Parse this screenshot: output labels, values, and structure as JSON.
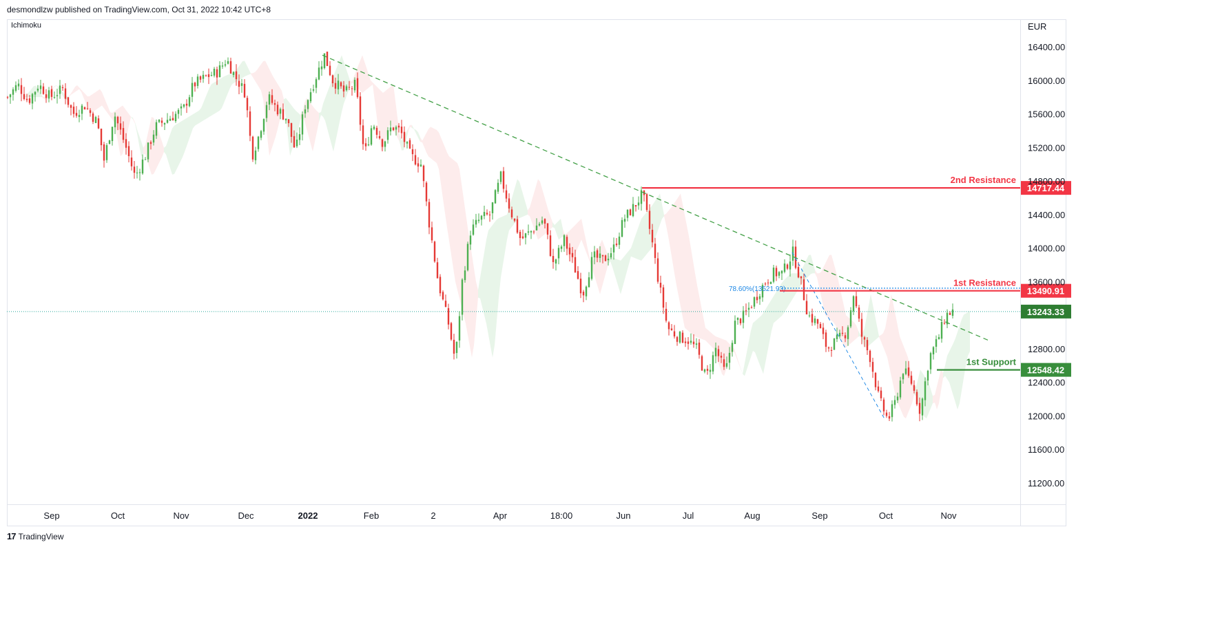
{
  "header": {
    "text": "desmondlzw published on TradingView.com, Oct 31, 2022 10:42 UTC+8"
  },
  "indicator": {
    "name": "Ichimoku"
  },
  "price_axis": {
    "currency": "EUR"
  },
  "footer": {
    "brand": "TradingView",
    "logo_mark": "17"
  },
  "colors": {
    "up": "#26a69a",
    "down": "#ef5350",
    "candle_up": "#4caf50",
    "candle_down": "#e53935",
    "trend": "#43a047",
    "resistance": "#f23645",
    "support": "#388e3c",
    "fib": "#1e88e5",
    "cloud_green": "#e8f5e9",
    "cloud_red": "#fdecec",
    "current": "#26a69a"
  },
  "chart_data": {
    "type": "candlestick",
    "symbol_currency": "EUR",
    "ylim": [
      10900,
      16700
    ],
    "y_ticks": [
      16400,
      16000,
      15600,
      15200,
      14800,
      14400,
      14000,
      13600,
      12800,
      12400,
      12000,
      11600,
      11200
    ],
    "x_labels": [
      "Sep",
      "Oct",
      "Nov",
      "Dec",
      "2022",
      "Feb",
      "2",
      "Apr",
      "18:00",
      "Jun",
      "Jul",
      "Aug",
      "Sep",
      "Oct",
      "Nov"
    ],
    "price_series": {
      "name": "",
      "points": [
        [
          0,
          15800
        ],
        [
          15,
          15950
        ],
        [
          30,
          15750
        ],
        [
          45,
          15950
        ],
        [
          62,
          15800
        ],
        [
          80,
          15900
        ],
        [
          95,
          15600
        ],
        [
          112,
          15700
        ],
        [
          130,
          15500
        ],
        [
          140,
          15050
        ],
        [
          155,
          15600
        ],
        [
          170,
          15250
        ],
        [
          185,
          14850
        ],
        [
          200,
          15100
        ],
        [
          215,
          15450
        ],
        [
          235,
          15550
        ],
        [
          255,
          15650
        ],
        [
          270,
          15950
        ],
        [
          290,
          16050
        ],
        [
          305,
          16100
        ],
        [
          318,
          16250
        ],
        [
          330,
          16050
        ],
        [
          345,
          15850
        ],
        [
          355,
          15100
        ],
        [
          365,
          15350
        ],
        [
          378,
          15800
        ],
        [
          392,
          15650
        ],
        [
          405,
          15550
        ],
        [
          418,
          15150
        ],
        [
          432,
          15700
        ],
        [
          448,
          16050
        ],
        [
          460,
          16300
        ],
        [
          472,
          16000
        ],
        [
          490,
          15850
        ],
        [
          505,
          15950
        ],
        [
          518,
          15100
        ],
        [
          530,
          15500
        ],
        [
          545,
          15250
        ],
        [
          558,
          15450
        ],
        [
          570,
          15400
        ],
        [
          585,
          15100
        ],
        [
          600,
          15000
        ],
        [
          612,
          14300
        ],
        [
          625,
          13600
        ],
        [
          640,
          13100
        ],
        [
          650,
          12650
        ],
        [
          660,
          13600
        ],
        [
          672,
          14200
        ],
        [
          686,
          14350
        ],
        [
          700,
          14400
        ],
        [
          716,
          14850
        ],
        [
          730,
          14450
        ],
        [
          745,
          14100
        ],
        [
          760,
          14200
        ],
        [
          778,
          14350
        ],
        [
          792,
          13800
        ],
        [
          808,
          14100
        ],
        [
          822,
          13800
        ],
        [
          835,
          13450
        ],
        [
          850,
          13900
        ],
        [
          865,
          13850
        ],
        [
          880,
          14000
        ],
        [
          895,
          14350
        ],
        [
          910,
          14500
        ],
        [
          922,
          14650
        ],
        [
          935,
          14100
        ],
        [
          945,
          13600
        ],
        [
          958,
          13050
        ],
        [
          972,
          12950
        ],
        [
          988,
          12900
        ],
        [
          1000,
          12800
        ],
        [
          1014,
          12450
        ],
        [
          1028,
          12800
        ],
        [
          1042,
          12500
        ],
        [
          1056,
          13100
        ],
        [
          1070,
          13200
        ],
        [
          1085,
          13400
        ],
        [
          1100,
          13600
        ],
        [
          1112,
          13700
        ],
        [
          1125,
          13700
        ],
        [
          1140,
          13950
        ],
        [
          1150,
          13650
        ],
        [
          1162,
          13200
        ],
        [
          1176,
          13100
        ],
        [
          1190,
          12800
        ],
        [
          1204,
          12900
        ],
        [
          1218,
          13000
        ],
        [
          1228,
          13450
        ],
        [
          1240,
          12950
        ],
        [
          1252,
          12700
        ],
        [
          1265,
          12200
        ],
        [
          1278,
          11950
        ],
        [
          1288,
          12150
        ],
        [
          1300,
          12550
        ],
        [
          1312,
          12400
        ],
        [
          1325,
          12050
        ],
        [
          1338,
          12700
        ],
        [
          1350,
          12900
        ],
        [
          1362,
          13200
        ],
        [
          1372,
          13250
        ]
      ]
    },
    "trendlines": [
      {
        "name": "",
        "from": [
          458,
          16300
        ],
        "to": [
          1425,
          12900
        ]
      }
    ],
    "fib_retracement": {
      "label": "78.60%(13521.93)",
      "level": 13522,
      "x_from": 1125,
      "x_to": 1475,
      "swing_from": [
        1140,
        13950
      ],
      "swing_to": [
        1275,
        11950
      ]
    },
    "levels": [
      {
        "name": "2nd Resistance",
        "value": 14717.44,
        "label": "14717.44",
        "x_from": 922,
        "kind": "resistance"
      },
      {
        "name": "1st Resistance",
        "value": 13490.91,
        "label": "13490.91",
        "x_from": 1122,
        "kind": "resistance"
      },
      {
        "name": "1st Support",
        "value": 12548.42,
        "label": "12548.42",
        "x_from": 1350,
        "kind": "support"
      }
    ],
    "current_price": {
      "value": 13243.33,
      "label": "13243.33"
    },
    "y_tick_labels": [
      "16400.00",
      "16000.00",
      "15600.00",
      "15200.00",
      "14800.00",
      "14400.00",
      "14000.00",
      "13600.00",
      "12800.00",
      "12400.00",
      "12000.00",
      "11600.00",
      "11200.00"
    ]
  }
}
